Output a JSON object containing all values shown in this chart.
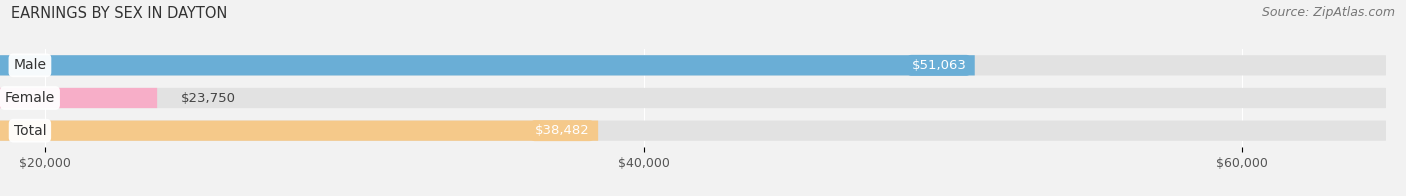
{
  "title": "EARNINGS BY SEX IN DAYTON",
  "source": "Source: ZipAtlas.com",
  "categories": [
    "Male",
    "Female",
    "Total"
  ],
  "values": [
    51063,
    23750,
    38482
  ],
  "bar_colors": [
    "#6aaed6",
    "#f7aec8",
    "#f5c98a"
  ],
  "xlim_min": 20000,
  "xlim_max": 65000,
  "xlim_display_max": 63000,
  "xticks": [
    20000,
    40000,
    60000
  ],
  "xtick_labels": [
    "$20,000",
    "$40,000",
    "$60,000"
  ],
  "bar_height": 0.62,
  "background_color": "#f2f2f2",
  "bar_bg_color": "#e2e2e2",
  "title_fontsize": 10.5,
  "source_fontsize": 9,
  "label_fontsize": 9.5,
  "tick_fontsize": 9,
  "category_fontsize": 10
}
